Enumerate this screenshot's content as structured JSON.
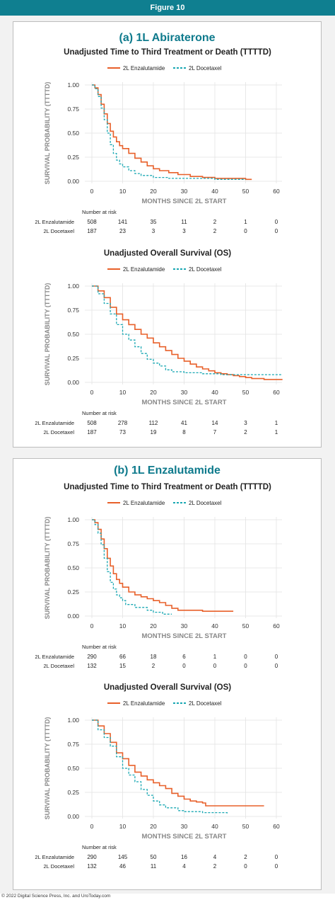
{
  "header": {
    "title": "Figure 10"
  },
  "footer": {
    "text": "© 2022 Digital Science Press, Inc. and UroToday.com"
  },
  "colors": {
    "enzalutamide": "#e8602a",
    "docetaxel": "#1aa8b3",
    "header": "#0f7f90"
  },
  "panels": [
    {
      "title": "(a) 1L Abiraterone"
    },
    {
      "title": "(b) 1L Enzalutamide"
    }
  ],
  "common": {
    "ylabel": "SURVIVAL PROBABILITY (TTTTD)",
    "xlabel": "MONTHS SINCE 2L START",
    "risk_heading": "Number at risk",
    "series_names": [
      "2L Enzalutamide",
      "2L Docetaxel"
    ]
  },
  "chart_data": [
    {
      "type": "line",
      "title": "Unadjusted Time to Third Treatment or Death (TTTTD)",
      "xlim": [
        0,
        60
      ],
      "ylim": [
        0,
        1
      ],
      "xticks": [
        0,
        10,
        20,
        30,
        40,
        50,
        60
      ],
      "yticks": [
        "0.00",
        "0.25",
        "0.50",
        "0.75",
        "1.00"
      ],
      "series": [
        {
          "name": "2L Enzalutamide",
          "points": [
            [
              0,
              1
            ],
            [
              1,
              0.97
            ],
            [
              2,
              0.9
            ],
            [
              3,
              0.8
            ],
            [
              4,
              0.7
            ],
            [
              5,
              0.6
            ],
            [
              6,
              0.52
            ],
            [
              7,
              0.46
            ],
            [
              8,
              0.41
            ],
            [
              9,
              0.37
            ],
            [
              10,
              0.34
            ],
            [
              12,
              0.29
            ],
            [
              14,
              0.24
            ],
            [
              16,
              0.2
            ],
            [
              18,
              0.16
            ],
            [
              20,
              0.13
            ],
            [
              22,
              0.11
            ],
            [
              25,
              0.09
            ],
            [
              28,
              0.07
            ],
            [
              32,
              0.05
            ],
            [
              36,
              0.04
            ],
            [
              40,
              0.03
            ],
            [
              45,
              0.03
            ],
            [
              50,
              0.02
            ],
            [
              52,
              0.02
            ]
          ]
        },
        {
          "name": "2L Docetaxel",
          "points": [
            [
              0,
              1
            ],
            [
              1,
              0.96
            ],
            [
              2,
              0.88
            ],
            [
              3,
              0.76
            ],
            [
              4,
              0.64
            ],
            [
              5,
              0.5
            ],
            [
              6,
              0.38
            ],
            [
              7,
              0.29
            ],
            [
              8,
              0.22
            ],
            [
              9,
              0.18
            ],
            [
              10,
              0.15
            ],
            [
              12,
              0.11
            ],
            [
              14,
              0.08
            ],
            [
              16,
              0.06
            ],
            [
              20,
              0.04
            ],
            [
              25,
              0.03
            ],
            [
              30,
              0.03
            ],
            [
              40,
              0.02
            ],
            [
              50,
              0.02
            ]
          ]
        }
      ],
      "risk_table": {
        "x": [
          0,
          10,
          20,
          30,
          40,
          50,
          60
        ],
        "rows": [
          {
            "name": "2L Enzalutamide",
            "values": [
              "508",
              "141",
              "35",
              "11",
              "2",
              "1",
              "0"
            ]
          },
          {
            "name": "2L Docetaxel",
            "values": [
              "187",
              "23",
              "3",
              "3",
              "2",
              "0",
              "0"
            ]
          }
        ]
      }
    },
    {
      "type": "line",
      "title": "Unadjusted Overall Survival (OS)",
      "xlim": [
        0,
        60
      ],
      "ylim": [
        0,
        1
      ],
      "xticks": [
        0,
        10,
        20,
        30,
        40,
        50,
        60
      ],
      "yticks": [
        "0.00",
        "0.25",
        "0.50",
        "0.75",
        "1.00"
      ],
      "series": [
        {
          "name": "2L Enzalutamide",
          "points": [
            [
              0,
              1
            ],
            [
              2,
              0.95
            ],
            [
              4,
              0.88
            ],
            [
              6,
              0.78
            ],
            [
              8,
              0.71
            ],
            [
              10,
              0.65
            ],
            [
              12,
              0.6
            ],
            [
              14,
              0.55
            ],
            [
              16,
              0.5
            ],
            [
              18,
              0.46
            ],
            [
              20,
              0.41
            ],
            [
              22,
              0.37
            ],
            [
              24,
              0.33
            ],
            [
              26,
              0.29
            ],
            [
              28,
              0.25
            ],
            [
              30,
              0.22
            ],
            [
              32,
              0.19
            ],
            [
              34,
              0.16
            ],
            [
              36,
              0.14
            ],
            [
              38,
              0.12
            ],
            [
              40,
              0.1
            ],
            [
              42,
              0.09
            ],
            [
              44,
              0.08
            ],
            [
              46,
              0.07
            ],
            [
              48,
              0.06
            ],
            [
              50,
              0.05
            ],
            [
              52,
              0.04
            ],
            [
              56,
              0.03
            ],
            [
              62,
              0.03
            ]
          ]
        },
        {
          "name": "2L Docetaxel",
          "points": [
            [
              0,
              1
            ],
            [
              2,
              0.92
            ],
            [
              4,
              0.82
            ],
            [
              6,
              0.71
            ],
            [
              8,
              0.6
            ],
            [
              10,
              0.5
            ],
            [
              12,
              0.44
            ],
            [
              14,
              0.37
            ],
            [
              16,
              0.3
            ],
            [
              18,
              0.24
            ],
            [
              20,
              0.2
            ],
            [
              22,
              0.17
            ],
            [
              24,
              0.13
            ],
            [
              26,
              0.11
            ],
            [
              30,
              0.1
            ],
            [
              36,
              0.09
            ],
            [
              42,
              0.08
            ],
            [
              50,
              0.08
            ],
            [
              62,
              0.08
            ]
          ]
        }
      ],
      "risk_table": {
        "x": [
          0,
          10,
          20,
          30,
          40,
          50,
          60
        ],
        "rows": [
          {
            "name": "2L Enzalutamide",
            "values": [
              "508",
              "278",
              "112",
              "41",
              "14",
              "3",
              "1"
            ]
          },
          {
            "name": "2L Docetaxel",
            "values": [
              "187",
              "73",
              "19",
              "8",
              "7",
              "2",
              "1"
            ]
          }
        ]
      }
    },
    {
      "type": "line",
      "title": "Unadjusted Time to Third Treatment or Death (TTTTD)",
      "xlim": [
        0,
        60
      ],
      "ylim": [
        0,
        1
      ],
      "xticks": [
        0,
        10,
        20,
        30,
        40,
        50,
        60
      ],
      "yticks": [
        "0.00",
        "0.25",
        "0.50",
        "0.75",
        "1.00"
      ],
      "series": [
        {
          "name": "2L Enzalutamide",
          "points": [
            [
              0,
              1
            ],
            [
              1,
              0.97
            ],
            [
              2,
              0.9
            ],
            [
              3,
              0.8
            ],
            [
              4,
              0.7
            ],
            [
              5,
              0.6
            ],
            [
              6,
              0.52
            ],
            [
              7,
              0.44
            ],
            [
              8,
              0.38
            ],
            [
              9,
              0.34
            ],
            [
              10,
              0.3
            ],
            [
              12,
              0.25
            ],
            [
              14,
              0.22
            ],
            [
              16,
              0.2
            ],
            [
              18,
              0.18
            ],
            [
              20,
              0.16
            ],
            [
              22,
              0.14
            ],
            [
              24,
              0.11
            ],
            [
              26,
              0.08
            ],
            [
              28,
              0.06
            ],
            [
              30,
              0.06
            ],
            [
              35,
              0.06
            ],
            [
              36,
              0.05
            ],
            [
              40,
              0.05
            ],
            [
              46,
              0.05
            ]
          ]
        },
        {
          "name": "2L Docetaxel",
          "points": [
            [
              0,
              1
            ],
            [
              1,
              0.95
            ],
            [
              2,
              0.86
            ],
            [
              3,
              0.74
            ],
            [
              4,
              0.6
            ],
            [
              5,
              0.46
            ],
            [
              6,
              0.35
            ],
            [
              7,
              0.28
            ],
            [
              8,
              0.22
            ],
            [
              9,
              0.19
            ],
            [
              10,
              0.16
            ],
            [
              11,
              0.12
            ],
            [
              14,
              0.09
            ],
            [
              18,
              0.06
            ],
            [
              20,
              0.04
            ],
            [
              23,
              0.02
            ],
            [
              26,
              0.02
            ]
          ]
        }
      ],
      "risk_table": {
        "x": [
          0,
          10,
          20,
          30,
          40,
          50,
          60
        ],
        "rows": [
          {
            "name": "2L Enzalutamide",
            "values": [
              "290",
              "66",
              "18",
              "6",
              "1",
              "0",
              "0"
            ]
          },
          {
            "name": "2L Docetaxel",
            "values": [
              "132",
              "15",
              "2",
              "0",
              "0",
              "0",
              "0"
            ]
          }
        ]
      }
    },
    {
      "type": "line",
      "title": "Unadjusted Overall Survival (OS)",
      "xlim": [
        0,
        60
      ],
      "ylim": [
        0,
        1
      ],
      "xticks": [
        0,
        10,
        20,
        30,
        40,
        50,
        60
      ],
      "yticks": [
        "0.00",
        "0.25",
        "0.50",
        "0.75",
        "1.00"
      ],
      "series": [
        {
          "name": "2L Enzalutamide",
          "points": [
            [
              0,
              1
            ],
            [
              2,
              0.94
            ],
            [
              4,
              0.86
            ],
            [
              6,
              0.77
            ],
            [
              8,
              0.66
            ],
            [
              10,
              0.6
            ],
            [
              12,
              0.53
            ],
            [
              14,
              0.46
            ],
            [
              16,
              0.42
            ],
            [
              18,
              0.38
            ],
            [
              20,
              0.35
            ],
            [
              22,
              0.32
            ],
            [
              24,
              0.29
            ],
            [
              26,
              0.24
            ],
            [
              28,
              0.21
            ],
            [
              30,
              0.18
            ],
            [
              32,
              0.16
            ],
            [
              34,
              0.15
            ],
            [
              36,
              0.14
            ],
            [
              37,
              0.11
            ],
            [
              40,
              0.11
            ],
            [
              45,
              0.11
            ],
            [
              50,
              0.11
            ],
            [
              56,
              0.11
            ]
          ]
        },
        {
          "name": "2L Docetaxel",
          "points": [
            [
              0,
              1
            ],
            [
              2,
              0.9
            ],
            [
              4,
              0.82
            ],
            [
              6,
              0.73
            ],
            [
              8,
              0.62
            ],
            [
              10,
              0.5
            ],
            [
              12,
              0.43
            ],
            [
              14,
              0.36
            ],
            [
              16,
              0.28
            ],
            [
              18,
              0.22
            ],
            [
              20,
              0.16
            ],
            [
              22,
              0.12
            ],
            [
              24,
              0.09
            ],
            [
              26,
              0.09
            ],
            [
              28,
              0.06
            ],
            [
              30,
              0.05
            ],
            [
              34,
              0.05
            ],
            [
              36,
              0.04
            ],
            [
              40,
              0.04
            ],
            [
              42,
              0.04
            ],
            [
              44,
              0.02
            ]
          ]
        }
      ],
      "risk_table": {
        "x": [
          0,
          10,
          20,
          30,
          40,
          50,
          60
        ],
        "rows": [
          {
            "name": "2L Enzalutamide",
            "values": [
              "290",
              "145",
              "50",
              "16",
              "4",
              "2",
              "0"
            ]
          },
          {
            "name": "2L Docetaxel",
            "values": [
              "132",
              "46",
              "11",
              "4",
              "2",
              "0",
              "0"
            ]
          }
        ]
      }
    }
  ]
}
